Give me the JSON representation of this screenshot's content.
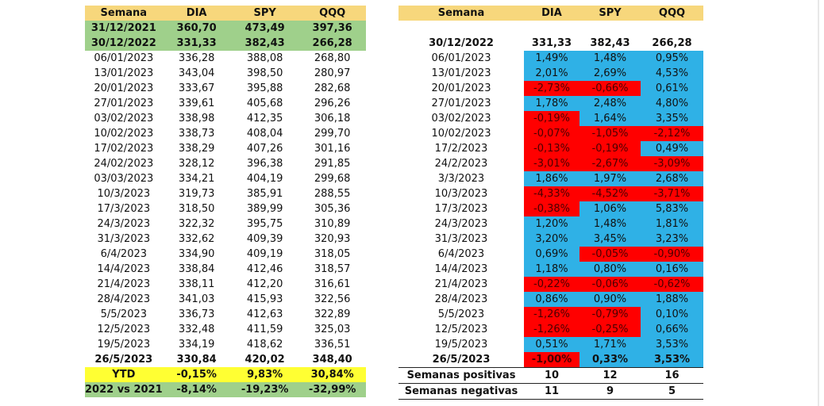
{
  "left": {
    "headers": [
      "Semana",
      "DIA",
      "SPY",
      "QQQ"
    ],
    "base_rows": [
      [
        "31/12/2021",
        "360,70",
        "473,49",
        "397,36"
      ],
      [
        "30/12/2022",
        "331,33",
        "382,43",
        "266,28"
      ]
    ],
    "rows": [
      [
        "06/01/2023",
        "336,28",
        "388,08",
        "268,80"
      ],
      [
        "13/01/2023",
        "343,04",
        "398,50",
        "280,97"
      ],
      [
        "20/01/2023",
        "333,67",
        "395,88",
        "282,68"
      ],
      [
        "27/01/2023",
        "339,61",
        "405,68",
        "296,26"
      ],
      [
        "03/02/2023",
        "338,98",
        "412,35",
        "306,18"
      ],
      [
        "10/02/2023",
        "338,73",
        "408,04",
        "299,70"
      ],
      [
        "17/02/2023",
        "338,29",
        "407,26",
        "301,16"
      ],
      [
        "24/02/2023",
        "328,12",
        "396,38",
        "291,85"
      ],
      [
        "03/03/2023",
        "334,21",
        "404,19",
        "299,68"
      ],
      [
        "10/3/2023",
        "319,73",
        "385,91",
        "288,55"
      ],
      [
        "17/3/2023",
        "318,50",
        "389,99",
        "305,36"
      ],
      [
        "24/3/2023",
        "322,32",
        "395,75",
        "310,89"
      ],
      [
        "31/3/2023",
        "332,62",
        "409,39",
        "320,93"
      ],
      [
        "6/4/2023",
        "334,90",
        "409,19",
        "318,05"
      ],
      [
        "14/4/2023",
        "338,84",
        "412,46",
        "318,57"
      ],
      [
        "21/4/2023",
        "338,11",
        "412,20",
        "316,61"
      ],
      [
        "28/4/2023",
        "341,03",
        "415,93",
        "322,56"
      ],
      [
        "5/5/2023",
        "336,73",
        "412,63",
        "322,89"
      ],
      [
        "12/5/2023",
        "332,48",
        "411,59",
        "325,03"
      ],
      [
        "19/5/2023",
        "334,19",
        "418,62",
        "336,51"
      ]
    ],
    "last_row": [
      "26/5/2023",
      "330,84",
      "420,02",
      "348,40"
    ],
    "ytd": [
      "YTD",
      "-0,15%",
      "9,83%",
      "30,84%"
    ],
    "vs": [
      "2022 vs 2021",
      "-8,14%",
      "-19,23%",
      "-32,99%"
    ]
  },
  "right": {
    "headers": [
      "Semana",
      "DIA",
      "SPY",
      "QQQ"
    ],
    "base_row": [
      "30/12/2022",
      "331,33",
      "382,43",
      "266,28"
    ],
    "rows": [
      [
        "06/01/2023",
        "1,49%",
        "1,48%",
        "0,95%"
      ],
      [
        "13/01/2023",
        "2,01%",
        "2,69%",
        "4,53%"
      ],
      [
        "20/01/2023",
        "-2,73%",
        "-0,66%",
        "0,61%"
      ],
      [
        "27/01/2023",
        "1,78%",
        "2,48%",
        "4,80%"
      ],
      [
        "03/02/2023",
        "-0,19%",
        "1,64%",
        "3,35%"
      ],
      [
        "10/02/2023",
        "-0,07%",
        "-1,05%",
        "-2,12%"
      ],
      [
        "17/2/2023",
        "-0,13%",
        "-0,19%",
        "0,49%"
      ],
      [
        "24/2/2023",
        "-3,01%",
        "-2,67%",
        "-3,09%"
      ],
      [
        "3/3/2023",
        "1,86%",
        "1,97%",
        "2,68%"
      ],
      [
        "10/3/2023",
        "-4,33%",
        "-4,52%",
        "-3,71%"
      ],
      [
        "17/3/2023",
        "-0,38%",
        "1,06%",
        "5,83%"
      ],
      [
        "24/3/2023",
        "1,20%",
        "1,48%",
        "1,81%"
      ],
      [
        "31/3/2023",
        "3,20%",
        "3,45%",
        "3,23%"
      ],
      [
        "6/4/2023",
        "0,69%",
        "-0,05%",
        "-0,90%"
      ],
      [
        "14/4/2023",
        "1,18%",
        "0,80%",
        "0,16%"
      ],
      [
        "21/4/2023",
        "-0,22%",
        "-0,06%",
        "-0,62%"
      ],
      [
        "28/4/2023",
        "0,86%",
        "0,90%",
        "1,88%"
      ],
      [
        "5/5/2023",
        "-1,26%",
        "-0,79%",
        "0,10%"
      ],
      [
        "12/5/2023",
        "-1,26%",
        "-0,25%",
        "0,66%"
      ],
      [
        "19/5/2023",
        "0,51%",
        "1,71%",
        "3,53%"
      ],
      [
        "26/5/2023",
        "-1,00%",
        "0,33%",
        "3,53%"
      ]
    ],
    "summary": [
      [
        "Semanas positivas",
        "10",
        "12",
        "16"
      ],
      [
        "Semanas negativas",
        "11",
        "9",
        "5"
      ]
    ],
    "colors": {
      "positive": "#2fb1e6",
      "negative": "#ff0000"
    }
  }
}
